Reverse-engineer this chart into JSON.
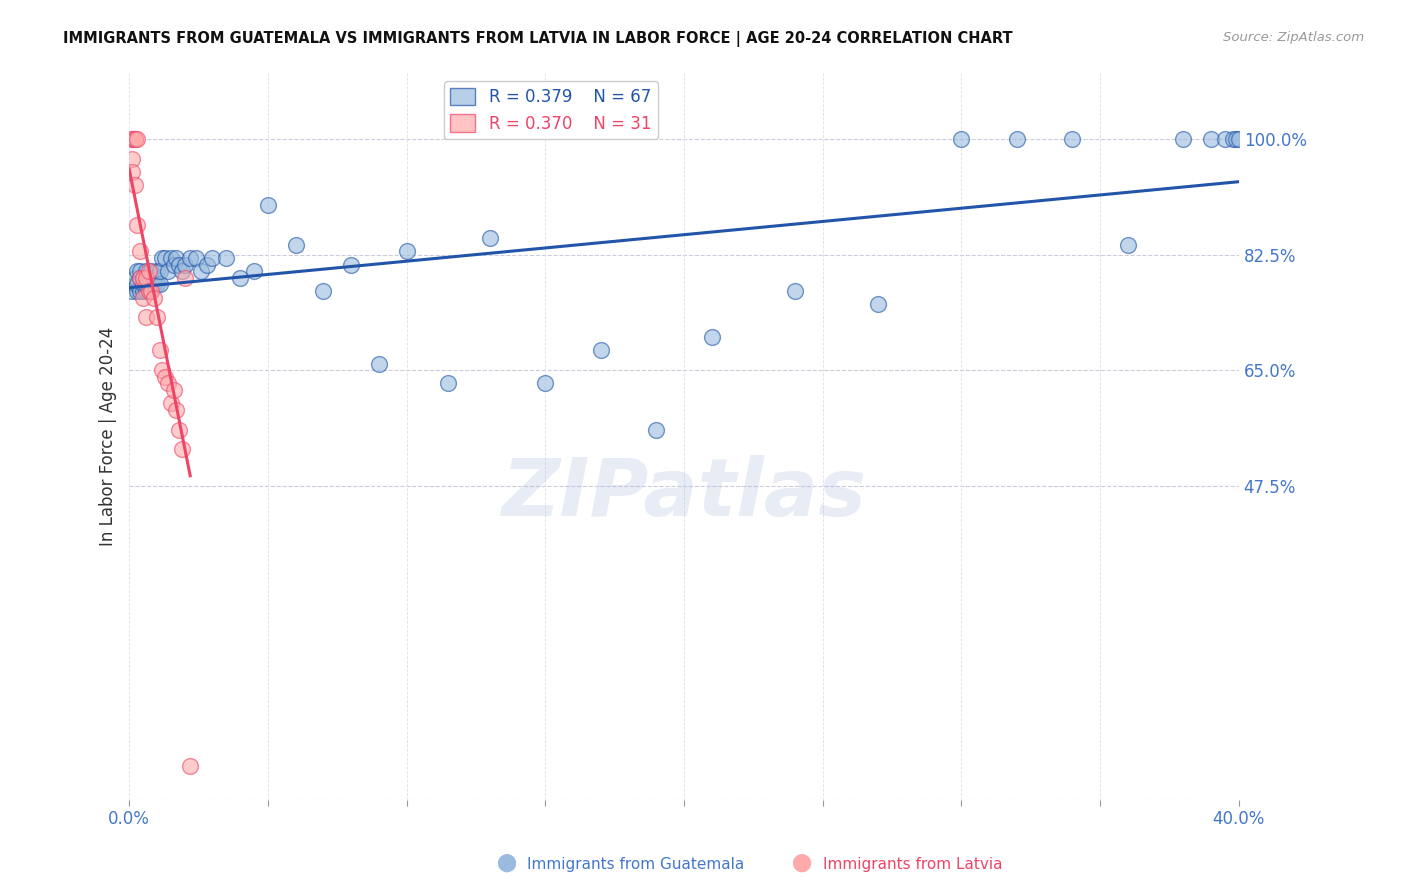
{
  "title": "IMMIGRANTS FROM GUATEMALA VS IMMIGRANTS FROM LATVIA IN LABOR FORCE | AGE 20-24 CORRELATION CHART",
  "source": "Source: ZipAtlas.com",
  "ylabel": "In Labor Force | Age 20-24",
  "r_guatemala": 0.379,
  "n_guatemala": 67,
  "r_latvia": 0.37,
  "n_latvia": 31,
  "xlim": [
    0.0,
    0.4
  ],
  "ylim": [
    0.0,
    1.1
  ],
  "ytick_vals": [
    0.0,
    0.475,
    0.65,
    0.825,
    1.0
  ],
  "ytick_labels": [
    "",
    "47.5%",
    "65.0%",
    "82.5%",
    "100.0%"
  ],
  "color_guatemala": "#99BBDD",
  "color_latvia": "#FFAAAA",
  "color_trendline_guatemala": "#2255AA",
  "color_trendline_latvia": "#EE4466",
  "color_axis_labels": "#4477CC",
  "color_grid": "#CCCCDD",
  "guatemala_x": [
    0.001,
    0.002,
    0.002,
    0.003,
    0.003,
    0.003,
    0.004,
    0.004,
    0.004,
    0.005,
    0.005,
    0.005,
    0.006,
    0.006,
    0.006,
    0.007,
    0.007,
    0.007,
    0.008,
    0.008,
    0.009,
    0.009,
    0.01,
    0.01,
    0.011,
    0.011,
    0.012,
    0.013,
    0.014,
    0.015,
    0.016,
    0.017,
    0.018,
    0.019,
    0.02,
    0.022,
    0.024,
    0.026,
    0.028,
    0.03,
    0.035,
    0.04,
    0.045,
    0.05,
    0.06,
    0.07,
    0.08,
    0.09,
    0.1,
    0.115,
    0.13,
    0.15,
    0.17,
    0.19,
    0.21,
    0.24,
    0.27,
    0.3,
    0.32,
    0.34,
    0.36,
    0.38,
    0.39,
    0.395,
    0.398,
    0.399,
    0.4
  ],
  "guatemala_y": [
    0.77,
    0.78,
    0.79,
    0.77,
    0.78,
    0.8,
    0.77,
    0.79,
    0.8,
    0.77,
    0.78,
    0.79,
    0.77,
    0.78,
    0.8,
    0.77,
    0.78,
    0.79,
    0.77,
    0.8,
    0.78,
    0.79,
    0.78,
    0.8,
    0.78,
    0.8,
    0.82,
    0.82,
    0.8,
    0.82,
    0.81,
    0.82,
    0.81,
    0.8,
    0.81,
    0.82,
    0.82,
    0.8,
    0.81,
    0.82,
    0.82,
    0.79,
    0.8,
    0.9,
    0.84,
    0.77,
    0.81,
    0.66,
    0.83,
    0.63,
    0.85,
    0.63,
    0.68,
    0.56,
    0.7,
    0.77,
    0.75,
    1.0,
    1.0,
    1.0,
    0.84,
    1.0,
    1.0,
    1.0,
    1.0,
    1.0,
    1.0
  ],
  "latvia_x": [
    0.001,
    0.001,
    0.001,
    0.001,
    0.002,
    0.002,
    0.002,
    0.003,
    0.003,
    0.004,
    0.004,
    0.005,
    0.005,
    0.006,
    0.006,
    0.007,
    0.007,
    0.008,
    0.009,
    0.01,
    0.011,
    0.012,
    0.013,
    0.014,
    0.015,
    0.016,
    0.017,
    0.018,
    0.019,
    0.02,
    0.022
  ],
  "latvia_y": [
    1.0,
    1.0,
    0.97,
    0.95,
    1.0,
    1.0,
    0.93,
    1.0,
    0.87,
    0.83,
    0.79,
    0.79,
    0.76,
    0.79,
    0.73,
    0.8,
    0.77,
    0.77,
    0.76,
    0.73,
    0.68,
    0.65,
    0.64,
    0.63,
    0.6,
    0.62,
    0.59,
    0.56,
    0.53,
    0.79,
    0.05
  ]
}
